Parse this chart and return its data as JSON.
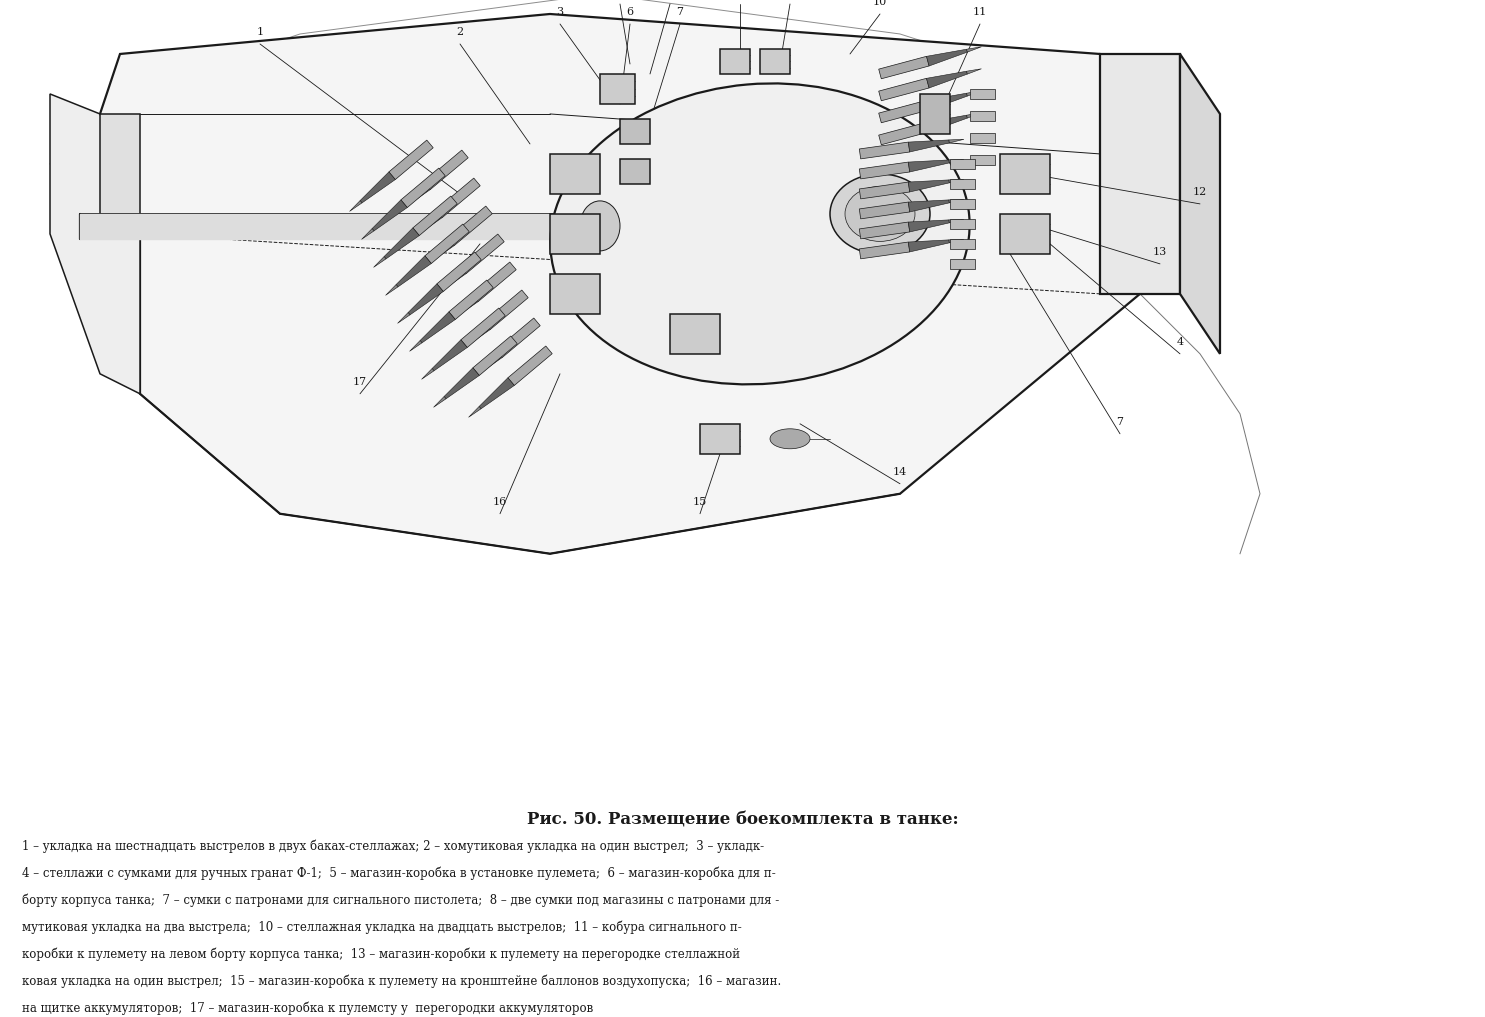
{
  "title": "Рис. 50. Размещение боекомплекта в танке:",
  "title_fontsize": 12,
  "caption_lines": [
    "1 – укладка на шестнадцать выстрелов в двух баках-стеллажах; 2 – хомутиковая укладка на один выстрел;  3 – укладк-",
    "4 – стеллажи с сумками для ручных гранат Ф-1;  5 – магазин-коробка в установке пулемета;  6 – магазин-коробка для п-",
    "борту корпуса танка;  7 – сумки с патронами для сигнального пистолета;  8 – две сумки под магазины с патронами для -",
    "мутиковая укладка на два выстрела;  10 – стеллажная укладка на двадцать выстрелов;  11 – кобура сигнального п-",
    "коробки к пулемету на левом борту корпуса танка;  13 – магазин-коробки к пулемету на перегородке стеллажной",
    "ковая укладка на один выстрел;  15 – магазин-коробка к пулемету на кронштейне баллонов воздухопуска;  16 – магазин.",
    "на щитке аккумуляторов;  17 – магазин-коробка к пулемсту у  перегородки аккумуляторов"
  ],
  "caption_fontsize": 8.5,
  "bg_color": "#ffffff",
  "ink_color": "#1a1a1a",
  "fig_width": 14.85,
  "fig_height": 10.17,
  "dpi": 100
}
